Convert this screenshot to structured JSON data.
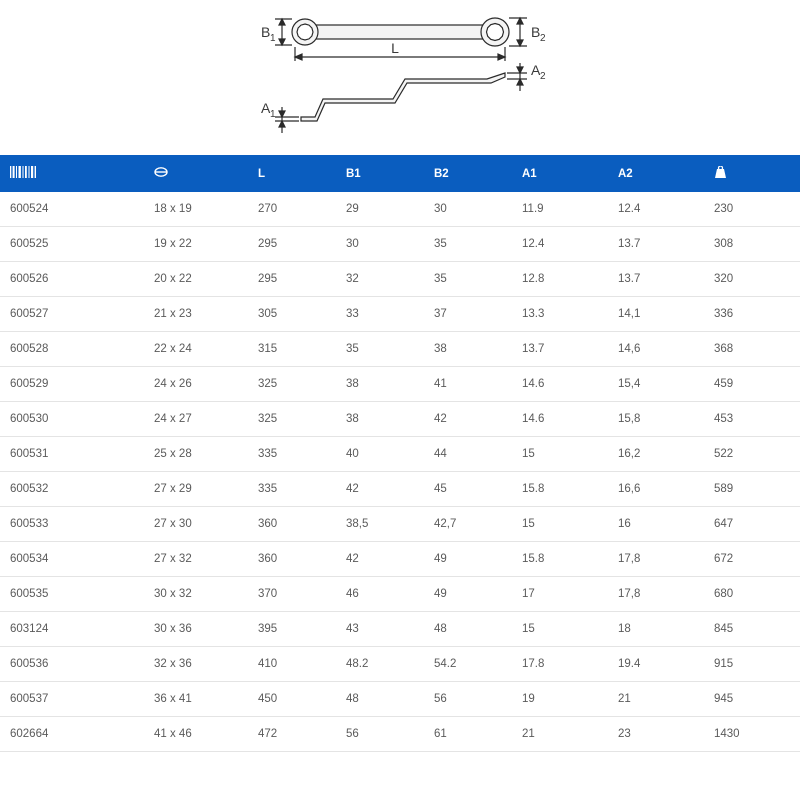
{
  "diagram": {
    "labels": {
      "B1": "B₁",
      "B2": "B₂",
      "L": "L",
      "A1": "A₁",
      "A2": "A₂"
    },
    "stroke": "#2a2a2a",
    "fill_light": "#f2f2f2",
    "text_color": "#3a3a3a"
  },
  "table": {
    "header_bg": "#0a5dbf",
    "header_fg": "#ffffff",
    "row_border": "#e4e4e4",
    "text_color": "#5a5a5a",
    "fontsize_header": 12,
    "fontsize_body": 11.5,
    "columns": [
      "code",
      "size",
      "L",
      "B1",
      "B2",
      "A1",
      "A2",
      "weight"
    ],
    "header_labels": {
      "code": "||||",
      "size": "⬭",
      "L": "L",
      "B1": "B1",
      "B2": "B2",
      "A1": "A1",
      "A2": "A2",
      "weight": "■"
    },
    "rows": [
      {
        "code": "600524",
        "size": "18 x 19",
        "L": "270",
        "B1": "29",
        "B2": "30",
        "A1": "11.9",
        "A2": "12.4",
        "weight": "230"
      },
      {
        "code": "600525",
        "size": "19 x 22",
        "L": "295",
        "B1": "30",
        "B2": "35",
        "A1": "12.4",
        "A2": "13.7",
        "weight": "308"
      },
      {
        "code": "600526",
        "size": "20 x 22",
        "L": "295",
        "B1": "32",
        "B2": "35",
        "A1": "12.8",
        "A2": "13.7",
        "weight": "320"
      },
      {
        "code": "600527",
        "size": "21 x 23",
        "L": "305",
        "B1": "33",
        "B2": "37",
        "A1": "13.3",
        "A2": "14,1",
        "weight": "336"
      },
      {
        "code": "600528",
        "size": "22 x 24",
        "L": "315",
        "B1": "35",
        "B2": "38",
        "A1": "13.7",
        "A2": "14,6",
        "weight": "368"
      },
      {
        "code": "600529",
        "size": "24 x 26",
        "L": "325",
        "B1": "38",
        "B2": "41",
        "A1": "14.6",
        "A2": "15,4",
        "weight": "459"
      },
      {
        "code": "600530",
        "size": "24 x 27",
        "L": "325",
        "B1": "38",
        "B2": "42",
        "A1": "14.6",
        "A2": "15,8",
        "weight": "453"
      },
      {
        "code": "600531",
        "size": "25 x 28",
        "L": "335",
        "B1": "40",
        "B2": "44",
        "A1": "15",
        "A2": "16,2",
        "weight": "522"
      },
      {
        "code": "600532",
        "size": "27 x 29",
        "L": "335",
        "B1": "42",
        "B2": "45",
        "A1": "15.8",
        "A2": "16,6",
        "weight": "589"
      },
      {
        "code": "600533",
        "size": "27 x 30",
        "L": "360",
        "B1": "38,5",
        "B2": "42,7",
        "A1": "15",
        "A2": "16",
        "weight": "647"
      },
      {
        "code": "600534",
        "size": "27 x 32",
        "L": "360",
        "B1": "42",
        "B2": "49",
        "A1": "15.8",
        "A2": "17,8",
        "weight": "672"
      },
      {
        "code": "600535",
        "size": "30 x 32",
        "L": "370",
        "B1": "46",
        "B2": "49",
        "A1": "17",
        "A2": "17,8",
        "weight": "680"
      },
      {
        "code": "603124",
        "size": "30 x 36",
        "L": "395",
        "B1": "43",
        "B2": "48",
        "A1": "15",
        "A2": "18",
        "weight": "845"
      },
      {
        "code": "600536",
        "size": "32 x 36",
        "L": "410",
        "B1": "48.2",
        "B2": "54.2",
        "A1": "17.8",
        "A2": "19.4",
        "weight": "915"
      },
      {
        "code": "600537",
        "size": "36 x 41",
        "L": "450",
        "B1": "48",
        "B2": "56",
        "A1": "19",
        "A2": "21",
        "weight": "945"
      },
      {
        "code": "602664",
        "size": "41 x 46",
        "L": "472",
        "B1": "56",
        "B2": "61",
        "A1": "21",
        "A2": "23",
        "weight": "1430"
      }
    ]
  }
}
